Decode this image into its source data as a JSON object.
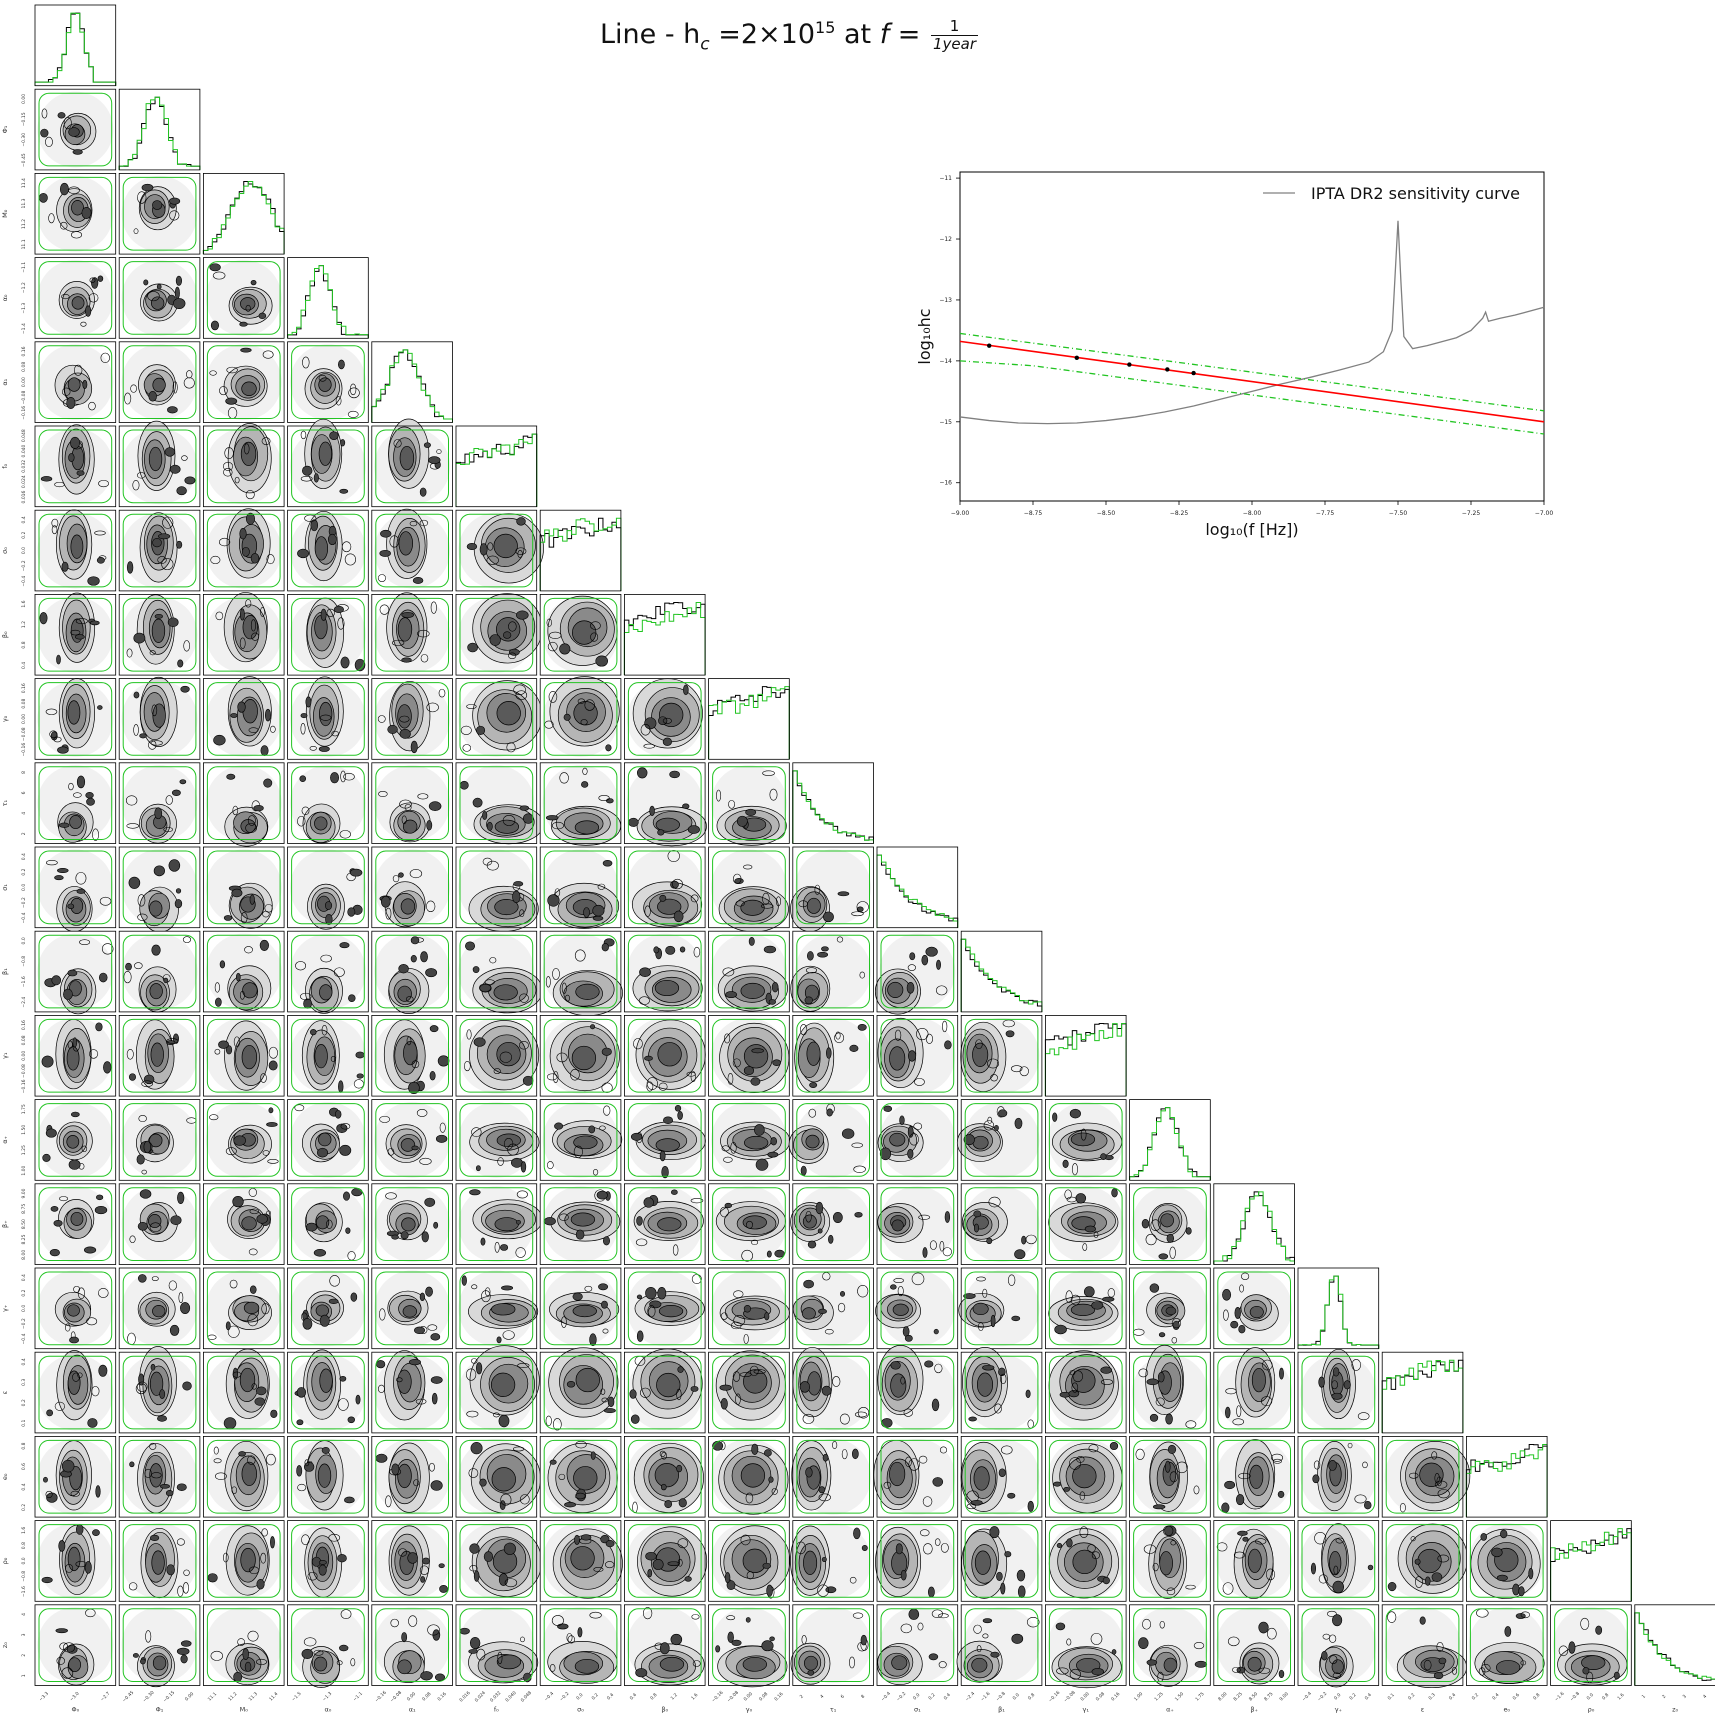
{
  "title": {
    "prefix": "Line - h",
    "sub": "c",
    "equals": " =2×10",
    "exp": "15",
    "mid": " at ",
    "fvar": "f",
    "eq2": " = ",
    "num": "1",
    "den": "1year"
  },
  "chart_data": [
    {
      "type": "corner",
      "parameters": [
        "Φ0",
        "Φ1",
        "M0",
        "α0",
        "α1",
        "f0",
        "σ0",
        "β0",
        "γ0",
        "τ1",
        "σ1",
        "β1",
        "γ1",
        "α+",
        "β+",
        "γ+",
        "ε",
        "e0",
        "ρ0",
        "z0"
      ],
      "axis_labels": [
        "Φ₀",
        "Φ₁",
        "M₀",
        "α₀",
        "α₁",
        "f₀",
        "σ₀",
        "β₀",
        "γ₀",
        "τ₁",
        "σ₁",
        "β₁",
        "γ₁",
        "α₊",
        "β₊",
        "γ₊",
        "ε",
        "e₀",
        "ρ₀",
        "z₀"
      ],
      "x_ticks": [
        [
          "−3.3",
          "−3.0",
          "−2.7"
        ],
        [
          "−0.45",
          "−0.30",
          "−0.15",
          "0.00"
        ],
        [
          "11.1",
          "11.2",
          "11.3",
          "11.4"
        ],
        [
          "−1.5",
          "−1.3",
          "−1.1"
        ],
        [
          "−0.16",
          "−0.08",
          "0.00",
          "0.08",
          "0.16"
        ],
        [
          "0.016",
          "0.024",
          "0.032",
          "0.040",
          "0.048"
        ],
        [
          "−0.4",
          "−0.2",
          "0.0",
          "0.2",
          "0.4"
        ],
        [
          "0.4",
          "0.8",
          "1.2",
          "1.6"
        ],
        [
          "−0.16",
          "−0.08",
          "0.00",
          "0.08",
          "0.16"
        ],
        [
          "2",
          "4",
          "6",
          "8"
        ],
        [
          "−0.4",
          "−0.2",
          "0.0",
          "0.2",
          "0.4"
        ],
        [
          "−2.4",
          "−1.6",
          "−0.8",
          "0.0",
          "0.8"
        ],
        [
          "−0.16",
          "−0.08",
          "0.00",
          "0.08",
          "0.16"
        ],
        [
          "1.00",
          "1.25",
          "1.50",
          "1.75"
        ],
        [
          "8.00",
          "8.25",
          "8.50",
          "8.75",
          "9.00"
        ],
        [
          "−0.4",
          "−0.2",
          "0.0",
          "0.2",
          "0.4"
        ],
        [
          "0.1",
          "0.2",
          "0.3",
          "0.4"
        ],
        [
          "0.2",
          "0.4",
          "0.6",
          "0.8"
        ],
        [
          "−1.6",
          "−0.8",
          "0.0",
          "0.8",
          "1.6"
        ],
        [
          "1",
          "2",
          "3",
          "4"
        ]
      ],
      "y_ticks": [
        [],
        [
          "0.00",
          "−0.15",
          "−0.30",
          "−0.45"
        ],
        [
          "11.4",
          "11.3",
          "11.2",
          "11.1"
        ],
        [
          "−1.1",
          "−1.2",
          "−1.3",
          "−1.4"
        ],
        [
          "0.16",
          "0.08",
          "0.00",
          "−0.08",
          "−0.16"
        ],
        [
          "0.048",
          "0.040",
          "0.032",
          "0.024",
          "0.016"
        ],
        [
          "0.4",
          "0.2",
          "0.0",
          "−0.2",
          "−0.4"
        ],
        [
          "1.6",
          "1.2",
          "0.8",
          "0.4"
        ],
        [
          "0.16",
          "0.08",
          "0.00",
          "−0.08",
          "−0.16"
        ],
        [
          "8",
          "6",
          "4",
          "2"
        ],
        [
          "0.4",
          "0.2",
          "0.0",
          "−0.2",
          "−0.4"
        ],
        [
          "0.0",
          "−0.8",
          "−1.6",
          "−2.4"
        ],
        [
          "0.16",
          "0.08",
          "0.00",
          "−0.08",
          "−0.16"
        ],
        [
          "1.75",
          "1.50",
          "1.25",
          "1.00"
        ],
        [
          "9.00",
          "8.75",
          "8.50",
          "8.25",
          "8.00"
        ],
        [
          "0.4",
          "0.2",
          "0.0",
          "−0.2",
          "−0.4"
        ],
        [
          "0.4",
          "0.3",
          "0.2",
          "0.1"
        ],
        [
          "0.8",
          "0.6",
          "0.4",
          "0.2"
        ],
        [
          "1.6",
          "0.8",
          "0.0",
          "−0.8",
          "−1.6"
        ],
        [
          "4",
          "3",
          "2",
          "1"
        ]
      ],
      "series": [
        {
          "name": "",
          "color": "#000000"
        },
        {
          "name": "",
          "color": "#22c422"
        }
      ]
    },
    {
      "type": "line",
      "xlabel": "log₁₀(f [Hz])",
      "ylabel": "log₁₀hc",
      "xlim": [
        -9.0,
        -7.0
      ],
      "ylim": [
        -16.3,
        -10.9
      ],
      "x_ticks": [
        "−9.00",
        "−8.75",
        "−8.50",
        "−8.25",
        "−8.00",
        "−7.75",
        "−7.50",
        "−7.25",
        "−7.00"
      ],
      "y_ticks": [
        "−11",
        "−12",
        "−13",
        "−14",
        "−15",
        "−16"
      ],
      "legend": {
        "position": "top-right",
        "label": "IPTA DR2 sensitivity curve"
      },
      "sensitivity_curve": {
        "color": "#808080",
        "x": [
          -9.0,
          -8.9,
          -8.8,
          -8.7,
          -8.6,
          -8.5,
          -8.4,
          -8.3,
          -8.2,
          -8.1,
          -8.0,
          -7.9,
          -7.8,
          -7.7,
          -7.6,
          -7.55,
          -7.52,
          -7.51,
          -7.5,
          -7.49,
          -7.48,
          -7.45,
          -7.4,
          -7.3,
          -7.25,
          -7.21,
          -7.2,
          -7.19,
          -7.15,
          -7.1,
          -7.0
        ],
        "y": [
          -14.92,
          -14.98,
          -15.02,
          -15.03,
          -15.02,
          -14.98,
          -14.92,
          -14.84,
          -14.74,
          -14.62,
          -14.5,
          -14.38,
          -14.27,
          -14.15,
          -14.02,
          -13.85,
          -13.5,
          -12.6,
          -11.7,
          -12.7,
          -13.6,
          -13.8,
          -13.75,
          -13.62,
          -13.5,
          -13.3,
          -13.2,
          -13.35,
          -13.3,
          -13.25,
          -13.12
        ]
      },
      "median_line": {
        "color": "#ff0000",
        "x": [
          -9.0,
          -7.0
        ],
        "y": [
          -13.68,
          -15.0
        ]
      },
      "band_upper": {
        "color": "#22c422",
        "x": [
          -9.0,
          -7.0
        ],
        "y": [
          -13.55,
          -14.82
        ]
      },
      "band_lower": {
        "color": "#22c422",
        "x": [
          -9.0,
          -8.75,
          -7.0
        ],
        "y": [
          -14.0,
          -14.08,
          -15.2
        ]
      },
      "points": {
        "x": [
          -8.9,
          -8.6,
          -8.42,
          -8.29,
          -8.2
        ],
        "y": [
          -13.75,
          -13.95,
          -14.06,
          -14.14,
          -14.2
        ]
      }
    }
  ]
}
